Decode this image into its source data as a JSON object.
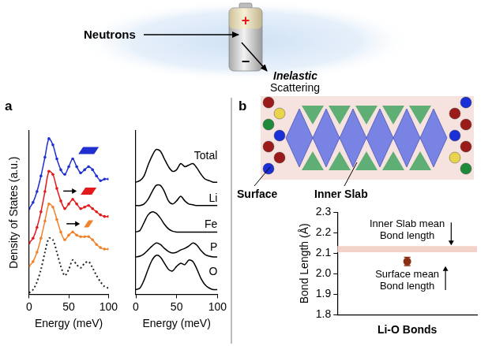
{
  "chart_data": [
    {
      "type": "line",
      "x_label": "Energy (meV)",
      "y_label": "Density of States (a.u.)",
      "x": [
        0,
        5,
        10,
        15,
        20,
        25,
        30,
        35,
        40,
        45,
        50,
        55,
        60,
        65,
        70,
        75,
        80,
        85,
        90,
        95,
        100
      ],
      "series": [
        {
          "color": "#1f2fd0",
          "marker": "circle",
          "line_style": "solid",
          "values": [
            5.5,
            5.9,
            6.6,
            7.6,
            8.8,
            10.0,
            9.6,
            8.7,
            8.0,
            7.7,
            8.2,
            8.7,
            8.2,
            7.8,
            8.0,
            8.2,
            8.0,
            7.6,
            7.3,
            7.4,
            7.4
          ]
        },
        {
          "color": "#e31a1c",
          "marker": "circle",
          "line_style": "solid",
          "values": [
            3.3,
            3.6,
            4.3,
            5.3,
            6.6,
            7.9,
            7.7,
            6.8,
            6.0,
            5.5,
            5.8,
            6.1,
            5.8,
            5.5,
            5.6,
            5.7,
            5.5,
            5.3,
            5.1,
            5.0,
            5.0
          ]
        },
        {
          "color": "#f0822a",
          "marker": "circle",
          "line_style": "solid",
          "values": [
            1.8,
            2.1,
            2.7,
            3.6,
            4.7,
            5.8,
            5.6,
            4.8,
            4.0,
            3.5,
            3.8,
            4.0,
            3.8,
            3.7,
            3.7,
            3.7,
            3.5,
            3.2,
            3.0,
            2.9,
            2.9
          ]
        },
        {
          "color": "#222222",
          "marker": "none",
          "line_style": "dotted",
          "values": [
            0.1,
            0.3,
            0.8,
            1.6,
            2.7,
            3.6,
            3.5,
            2.7,
            1.8,
            1.2,
            1.6,
            2.2,
            1.9,
            1.7,
            2.0,
            2.1,
            1.7,
            1.2,
            0.8,
            0.5,
            0.4
          ]
        }
      ],
      "xlim": [
        0,
        100
      ],
      "xticks": [
        0,
        50,
        100
      ],
      "ylim": [
        0,
        10.5
      ],
      "tick_labels": "x",
      "grid": false
    },
    {
      "type": "line",
      "x_label": "Energy (meV)",
      "x": [
        0,
        5,
        10,
        15,
        20,
        25,
        30,
        35,
        40,
        45,
        50,
        55,
        60,
        65,
        70,
        75,
        80,
        85,
        90,
        95,
        100
      ],
      "series": [
        {
          "name": "Total",
          "color": "#000000",
          "marker": "none",
          "line_style": "solid",
          "values": [
            7.2,
            7.3,
            7.6,
            8.3,
            8.9,
            9.3,
            9.2,
            8.7,
            8.2,
            7.9,
            8.0,
            8.4,
            8.2,
            8.3,
            8.4,
            8.1,
            7.7,
            7.4,
            7.3,
            7.2,
            7.2
          ]
        },
        {
          "name": "Li",
          "color": "#000000",
          "marker": "none",
          "line_style": "solid",
          "values": [
            5.7,
            5.7,
            5.8,
            6.1,
            6.6,
            7.0,
            7.0,
            6.6,
            6.0,
            5.8,
            6.0,
            6.3,
            6.0,
            5.8,
            5.75,
            5.7,
            5.7,
            5.7,
            5.7,
            5.7,
            5.7
          ]
        },
        {
          "name": "Fe",
          "color": "#000000",
          "marker": "none",
          "line_style": "solid",
          "values": [
            4.0,
            4.1,
            4.6,
            5.1,
            5.3,
            5.2,
            4.9,
            4.5,
            4.2,
            4.05,
            4.0,
            4.0,
            4.0,
            4.0,
            4.0,
            4.0,
            4.0,
            4.0,
            4.0,
            4.0,
            4.0
          ]
        },
        {
          "name": "P",
          "color": "#000000",
          "marker": "none",
          "line_style": "solid",
          "values": [
            2.4,
            2.45,
            2.6,
            2.85,
            3.1,
            3.3,
            3.2,
            2.95,
            2.75,
            2.65,
            2.7,
            2.85,
            2.95,
            3.1,
            3.3,
            3.15,
            2.8,
            2.55,
            2.45,
            2.4,
            2.4
          ]
        },
        {
          "name": "O",
          "color": "#000000",
          "marker": "none",
          "line_style": "solid",
          "values": [
            0.3,
            0.4,
            0.9,
            1.6,
            2.2,
            2.5,
            2.4,
            2.0,
            1.6,
            1.5,
            1.8,
            2.0,
            1.9,
            2.2,
            2.1,
            1.6,
            1.0,
            0.6,
            0.4,
            0.3,
            0.3
          ]
        }
      ],
      "xlim": [
        0,
        100
      ],
      "xticks": [
        0,
        50,
        100
      ],
      "ylim": [
        0,
        10.5
      ],
      "tick_labels": "x",
      "grid": false
    },
    {
      "type": "scatter",
      "y_label": "Bond Length (Å)",
      "categories": [
        "Li-O Bonds"
      ],
      "values": [
        2.06
      ],
      "errors": [
        0.02
      ],
      "color": "#8b2f14",
      "marker": "circle",
      "band": {
        "low": 2.105,
        "high": 2.135,
        "color": "#f3d3c9",
        "label": "Inner Slab mean Bond length"
      },
      "annotation": "Surface mean Bond length",
      "ylim": [
        1.8,
        2.3
      ],
      "yticks": [
        1.8,
        1.9,
        {
          "value": 2,
          "label": "2.0"
        },
        2.1,
        2.2,
        2.3
      ],
      "grid": false
    }
  ],
  "figure": {
    "panels": [
      "a",
      "b"
    ],
    "illustration": {
      "incoming": "Neutrons",
      "outgoing": [
        "Inelastic",
        "Scattering"
      ],
      "terminals": [
        "+",
        "−"
      ]
    },
    "structure": {
      "labels": [
        "Surface",
        "Inner Slab"
      ]
    }
  }
}
